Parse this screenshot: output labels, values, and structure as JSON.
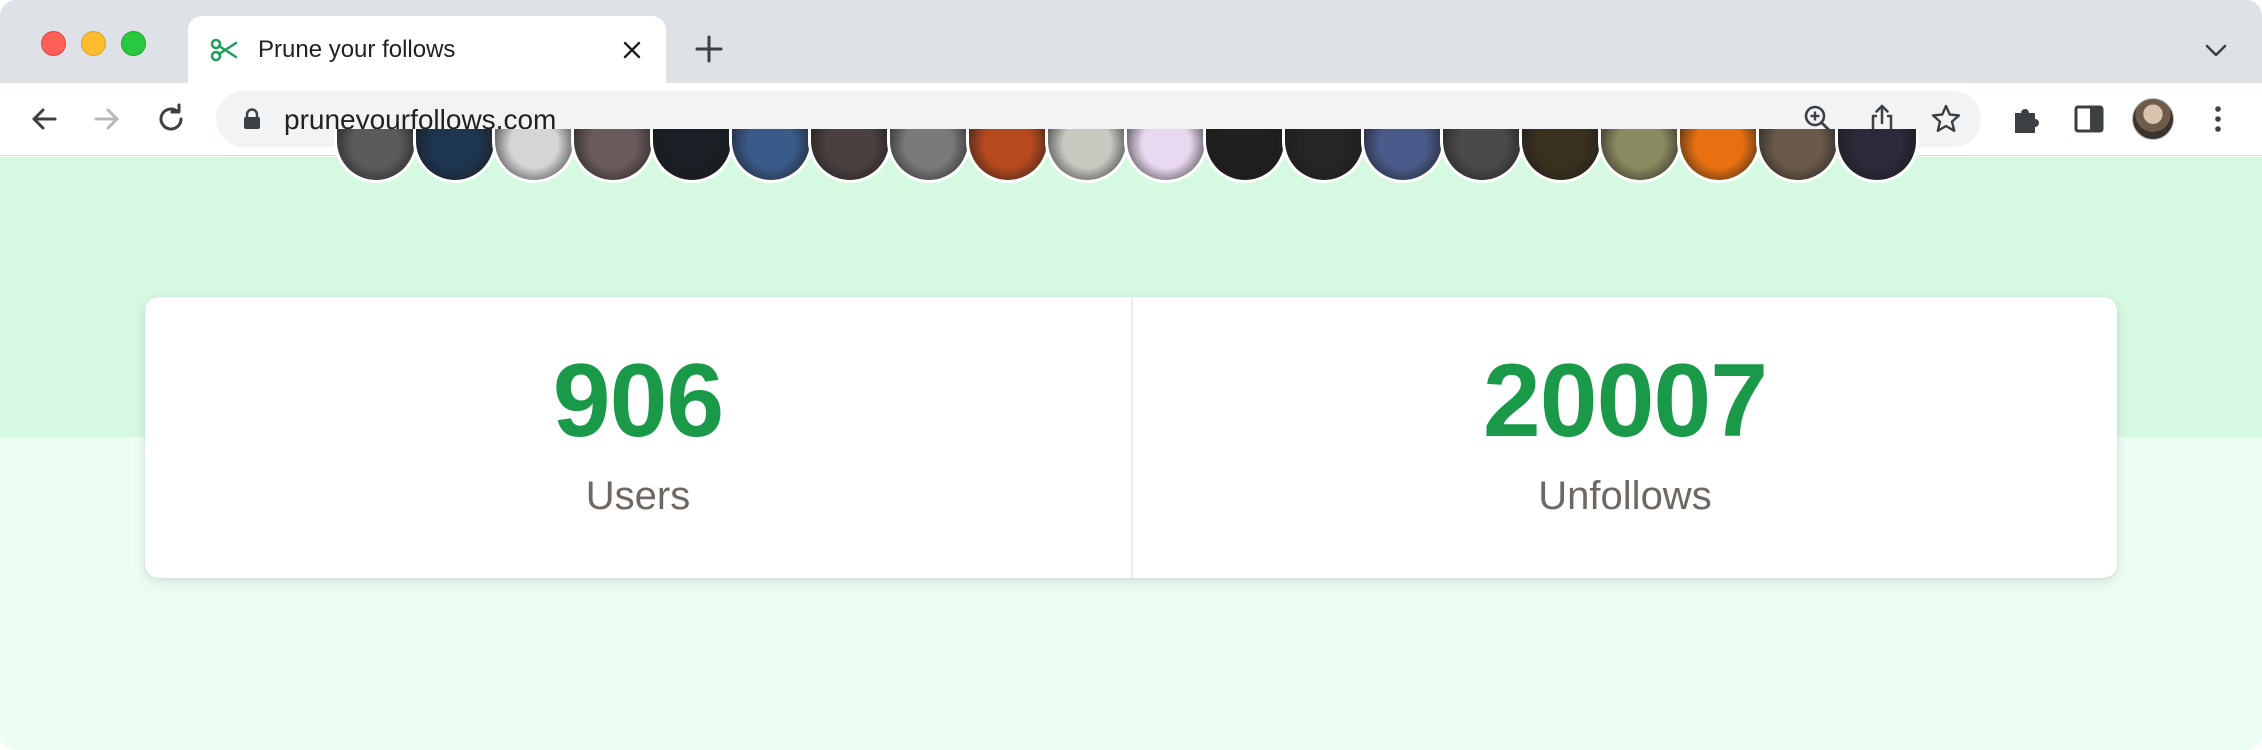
{
  "browser": {
    "tab_title": "Prune your follows",
    "favicon": "scissors-icon",
    "url": "pruneyourfollows.com",
    "accent_color": "#1aa05b"
  },
  "toolbar": {
    "icons": [
      "back-arrow-icon",
      "forward-arrow-icon",
      "reload-icon",
      "zoom-icon",
      "share-icon",
      "bookmark-star-icon",
      "extensions-puzzle-icon",
      "side-panel-icon",
      "profile-avatar",
      "more-menu-icon"
    ]
  },
  "hero": {
    "avatar_colors": [
      "#5a5a5a",
      "#1e3550",
      "#d5d5d5",
      "#6a5a5a",
      "#1a1f25",
      "#3a5a8a",
      "#4a4040",
      "#7a7a7a",
      "#b64a1e",
      "#c8c8c0",
      "#e8d8f0",
      "#202020",
      "#252525",
      "#4a5a8a",
      "#4a4a4a",
      "#3a3020",
      "#8a8a60",
      "#e87010",
      "#6a5a4a",
      "#2a2a3a"
    ]
  },
  "stats": {
    "users_value": "906",
    "users_label": "Users",
    "unfollows_value": "20007",
    "unfollows_label": "Unfollows",
    "value_color": "#1a9a48"
  }
}
